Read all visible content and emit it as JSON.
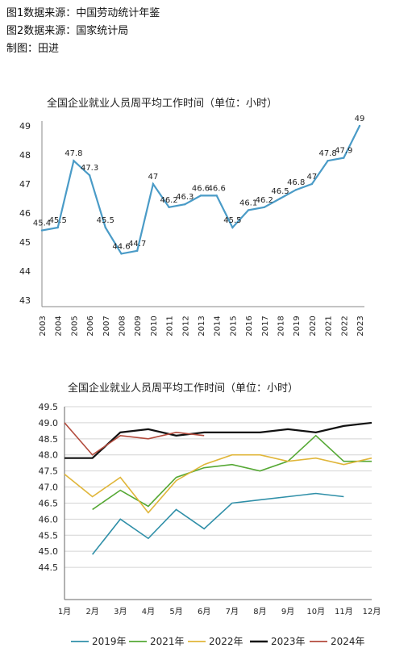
{
  "sources": {
    "line1": "图1数据来源：中国劳动统计年鉴",
    "line2": "图2数据来源：国家统计局",
    "line3": "制图：田进"
  },
  "chart_data": [
    {
      "type": "line",
      "title": "全国企业就业人员周平均工作时间（单位：小时）",
      "x": [
        "2003",
        "2004",
        "2005",
        "2006",
        "2007",
        "2008",
        "2009",
        "2010",
        "2011",
        "2012",
        "2013",
        "2014",
        "2015",
        "2016",
        "2017",
        "2018",
        "2019",
        "2020",
        "2021",
        "2022",
        "2023"
      ],
      "series": [
        {
          "values": [
            45.4,
            45.5,
            47.8,
            47.3,
            45.5,
            44.6,
            44.7,
            47,
            46.2,
            46.3,
            46.6,
            46.6,
            45.5,
            46.1,
            46.2,
            46.5,
            46.8,
            47,
            47.8,
            47.9,
            49
          ],
          "labels": [
            "45.4",
            "45.5",
            "47.8",
            "47.3",
            "45.5",
            "44.6",
            "44.7",
            "47",
            "46.2",
            "46.3",
            "46.6",
            "46.6",
            "45.5",
            "46.1",
            "46.2",
            "46.5",
            "46.8",
            "47",
            "47.8",
            "47.9",
            "49"
          ],
          "color": "#4a9bc7"
        }
      ],
      "ylim": [
        43,
        49
      ],
      "yticks": [
        "49",
        "48",
        "47",
        "46",
        "45",
        "44",
        "43"
      ],
      "grid": false,
      "legend": "none"
    },
    {
      "type": "line",
      "title": "全国企业就业人员周平均工作时间（单位：小时）",
      "categories": [
        "1月",
        "2月",
        "3月",
        "4月",
        "5月",
        "6月",
        "7月",
        "8月",
        "9月",
        "10月",
        "11月",
        "12月"
      ],
      "series": [
        {
          "name": "2019年",
          "color": "#2f8fa8",
          "values": [
            null,
            44.9,
            46.0,
            45.4,
            46.3,
            45.7,
            46.5,
            46.6,
            46.7,
            46.8,
            46.7,
            null
          ]
        },
        {
          "name": "2021年",
          "color": "#55a834",
          "values": [
            null,
            46.3,
            46.9,
            46.4,
            47.3,
            47.6,
            47.7,
            47.5,
            47.8,
            48.6,
            47.8,
            47.8
          ]
        },
        {
          "name": "2022年",
          "color": "#e0b63a",
          "values": [
            47.4,
            46.7,
            47.3,
            46.2,
            47.2,
            47.7,
            48.0,
            48.0,
            47.8,
            47.9,
            47.7,
            47.9
          ]
        },
        {
          "name": "2023年",
          "color": "#111111",
          "values": [
            47.9,
            47.9,
            48.7,
            48.8,
            48.6,
            48.7,
            48.7,
            48.7,
            48.8,
            48.7,
            48.9,
            49.0
          ]
        },
        {
          "name": "2024年",
          "color": "#b24a3c",
          "values": [
            49.0,
            48.0,
            48.6,
            48.5,
            48.7,
            48.6,
            null,
            null,
            null,
            null,
            null,
            null
          ]
        }
      ],
      "ylim": [
        44.0,
        49.5
      ],
      "yticks": [
        "49.5",
        "49.0",
        "48.5",
        "48.0",
        "47.5",
        "47.0",
        "46.5",
        "46.0",
        "45.5",
        "45.0",
        "44.5"
      ],
      "grid": true,
      "legend": "bottom"
    }
  ]
}
